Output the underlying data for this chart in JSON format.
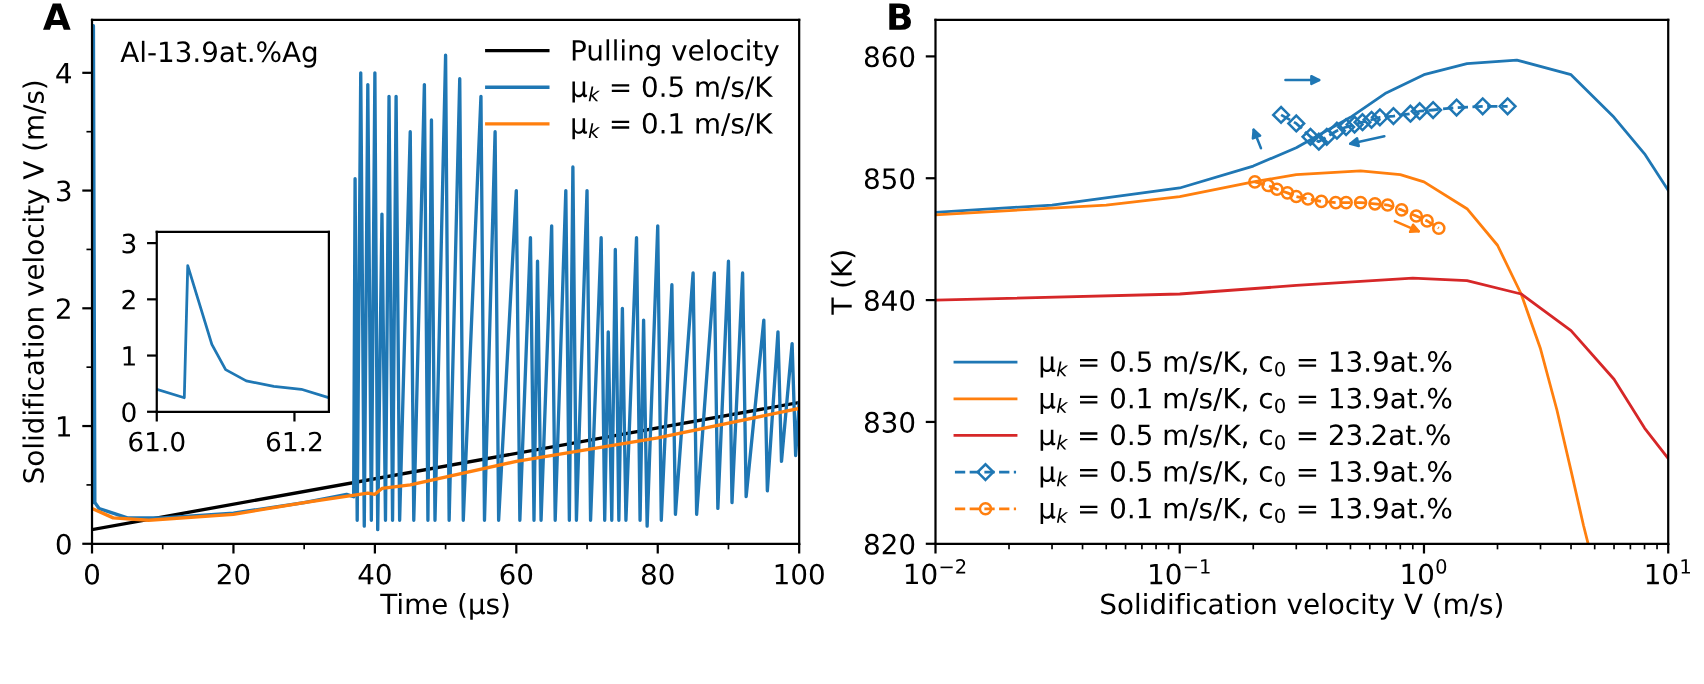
{
  "chart_data": [
    {
      "type": "line",
      "title": "A",
      "xlabel": "Time (μs)",
      "ylabel": "Solidification velocity V (m/s)",
      "annotations": [
        "Al-13.9at.%Ag"
      ],
      "legend": "top right",
      "xlim": [
        0,
        100
      ],
      "xticks": [
        0,
        20,
        40,
        60,
        80,
        100
      ],
      "ylim": [
        0,
        4.45
      ],
      "yticks": [
        0,
        1,
        2,
        3,
        4
      ],
      "series": [
        {
          "name": "Pulling velocity",
          "color": "#000000",
          "x": [
            0,
            100
          ],
          "values": [
            0.12,
            1.2
          ]
        },
        {
          "name": "μ$_{k}$ = 0.5 m/s/K",
          "color": "#1f77b4",
          "x": [
            0,
            0.2,
            0.4,
            1,
            2,
            5,
            10,
            20,
            30,
            36,
            37,
            37.2,
            37.5,
            38,
            38.5,
            39,
            39.5,
            40,
            40.4,
            41,
            41.5,
            42,
            42.5,
            43,
            43.5,
            45,
            45.5,
            47,
            47.5,
            48,
            48.5,
            50,
            50.5,
            52,
            52.5,
            55,
            55.5,
            57,
            57.5,
            60,
            60.5,
            62,
            62.5,
            63,
            63.5,
            65,
            65.5,
            67,
            67.5,
            68,
            68.5,
            70,
            70.5,
            72,
            72.5,
            73,
            73.5,
            74,
            74.5,
            75,
            75.5,
            77,
            77.5,
            78,
            78.5,
            80,
            80.5,
            82,
            82.5,
            85,
            85.5,
            88,
            88.5,
            90,
            90.5,
            92,
            92.5,
            95,
            95.5,
            97,
            97.5,
            99,
            99.5,
            100
          ],
          "values": [
            0.35,
            4.4,
            0.35,
            0.3,
            0.28,
            0.22,
            0.22,
            0.26,
            0.35,
            0.42,
            0.4,
            3.1,
            0.2,
            4.0,
            0.15,
            3.9,
            0.2,
            4.0,
            0.12,
            2.8,
            0.2,
            3.8,
            0.2,
            3.8,
            0.2,
            3.5,
            0.2,
            3.9,
            0.2,
            3.6,
            0.2,
            4.15,
            0.2,
            3.95,
            0.2,
            3.8,
            0.2,
            3.5,
            0.2,
            3.0,
            0.2,
            2.6,
            0.2,
            2.4,
            0.2,
            2.7,
            0.2,
            3.0,
            0.2,
            3.2,
            0.2,
            3.0,
            0.2,
            2.6,
            0.2,
            1.8,
            0.2,
            2.5,
            0.2,
            2.0,
            0.2,
            2.6,
            0.2,
            1.9,
            0.15,
            2.7,
            0.2,
            2.2,
            0.25,
            2.3,
            0.25,
            2.3,
            0.3,
            2.4,
            0.35,
            2.3,
            0.4,
            1.9,
            0.45,
            1.8,
            0.7,
            1.7,
            0.75,
            1.2
          ]
        },
        {
          "name": "μ$_{k}$ = 0.1 m/s/K",
          "color": "#ff7f0e",
          "x": [
            0,
            3,
            8,
            20,
            30,
            39,
            40,
            41,
            45,
            60,
            80,
            100
          ],
          "values": [
            0.3,
            0.22,
            0.2,
            0.25,
            0.35,
            0.43,
            0.42,
            0.47,
            0.5,
            0.7,
            0.9,
            1.15
          ]
        }
      ]
    },
    {
      "type": "line",
      "xlim": [
        61.0,
        61.25
      ],
      "xticks": [
        {
          "value": 61.0,
          "label": "61.0"
        },
        {
          "value": 61.2,
          "label": "61.2"
        }
      ],
      "ylim": [
        0,
        3.2
      ],
      "yticks": [
        0,
        1,
        2,
        3
      ],
      "series": [
        {
          "color": "#1f77b4",
          "x": [
            61.0,
            61.04,
            61.045,
            61.06,
            61.08,
            61.1,
            61.13,
            61.17,
            61.21,
            61.25
          ],
          "values": [
            0.4,
            0.25,
            2.6,
            2.0,
            1.2,
            0.75,
            0.55,
            0.45,
            0.4,
            0.25
          ]
        }
      ]
    },
    {
      "type": "line",
      "title": "B",
      "xlabel": "Solidification velocity V (m/s)",
      "ylabel": "T (K)",
      "log": "x",
      "legend": "bottom left",
      "xlim": [
        0.01,
        10
      ],
      "xticks": [
        {
          "value": 0.01,
          "label": "10$^{−2}$"
        },
        {
          "value": 0.1,
          "label": "10$^{−1}$"
        },
        {
          "value": 1,
          "label": "10$^{0}$"
        },
        {
          "value": 10,
          "label": "10$^{1}$"
        }
      ],
      "ylim": [
        820,
        863
      ],
      "yticks": [
        820,
        830,
        840,
        850,
        860
      ],
      "series": [
        {
          "name": "μ$_{k}$ = 0.5 m/s/K, c$_{0}$ = 13.9at.%",
          "color": "#1f77b4",
          "x": [
            0.01,
            0.03,
            0.1,
            0.2,
            0.3,
            0.5,
            0.7,
            1,
            1.5,
            2.4,
            4,
            6,
            8,
            10
          ],
          "values": [
            847.2,
            847.8,
            849.2,
            851,
            852.5,
            855,
            857,
            858.5,
            859.4,
            859.7,
            858.5,
            855,
            852,
            849
          ]
        },
        {
          "name": "μ$_{k}$ = 0.1 m/s/K, c$_{0}$ = 13.9at.%",
          "color": "#ff7f0e",
          "x": [
            0.01,
            0.05,
            0.1,
            0.2,
            0.3,
            0.55,
            0.8,
            1,
            1.5,
            2,
            2.5,
            3,
            3.5,
            4,
            4.5,
            4.7
          ],
          "values": [
            847,
            847.8,
            848.5,
            849.7,
            850.3,
            850.6,
            850.3,
            849.7,
            847.5,
            844.5,
            840.5,
            836,
            831,
            826,
            821.5,
            820
          ]
        },
        {
          "name": "μ$_{k}$ = 0.5 m/s/K, c$_{0}$ = 23.2at.%",
          "color": "#d62728",
          "x": [
            0.01,
            0.1,
            0.3,
            0.9,
            1.5,
            2.5,
            4,
            6,
            8,
            10
          ],
          "values": [
            840,
            840.5,
            841.2,
            841.8,
            841.6,
            840.5,
            837.5,
            833.5,
            829.5,
            827
          ]
        },
        {
          "name": "μ$_{k}$ = 0.5 m/s/K, c$_{0}$ = 13.9at.%",
          "color": "#1f77b4",
          "marker": "diamond",
          "line_style": "dashed",
          "x": [
            0.26,
            0.3,
            0.343,
            0.371,
            0.4,
            0.44,
            0.48,
            0.52,
            0.56,
            0.61,
            0.66,
            0.75,
            0.88,
            0.96,
            1.09,
            1.36,
            1.74,
            2.2
          ],
          "values": [
            855.2,
            854.5,
            853.4,
            853.0,
            853.4,
            853.9,
            854.2,
            854.4,
            854.6,
            854.8,
            855.0,
            855.1,
            855.3,
            855.5,
            855.6,
            855.8,
            855.9,
            855.9
          ]
        },
        {
          "name": "μ$_{k}$ = 0.1 m/s/K, c$_{0}$ = 13.9at.%",
          "color": "#ff7f0e",
          "marker": "circle",
          "line_style": "dashed",
          "x": [
            0.203,
            0.23,
            0.25,
            0.276,
            0.3,
            0.335,
            0.38,
            0.435,
            0.48,
            0.55,
            0.63,
            0.71,
            0.81,
            0.93,
            1.03,
            1.15
          ],
          "values": [
            849.7,
            849.4,
            849.1,
            848.8,
            848.5,
            848.3,
            848.1,
            848.0,
            848.0,
            848.0,
            847.9,
            847.8,
            847.4,
            846.9,
            846.5,
            845.9
          ]
        }
      ]
    }
  ]
}
